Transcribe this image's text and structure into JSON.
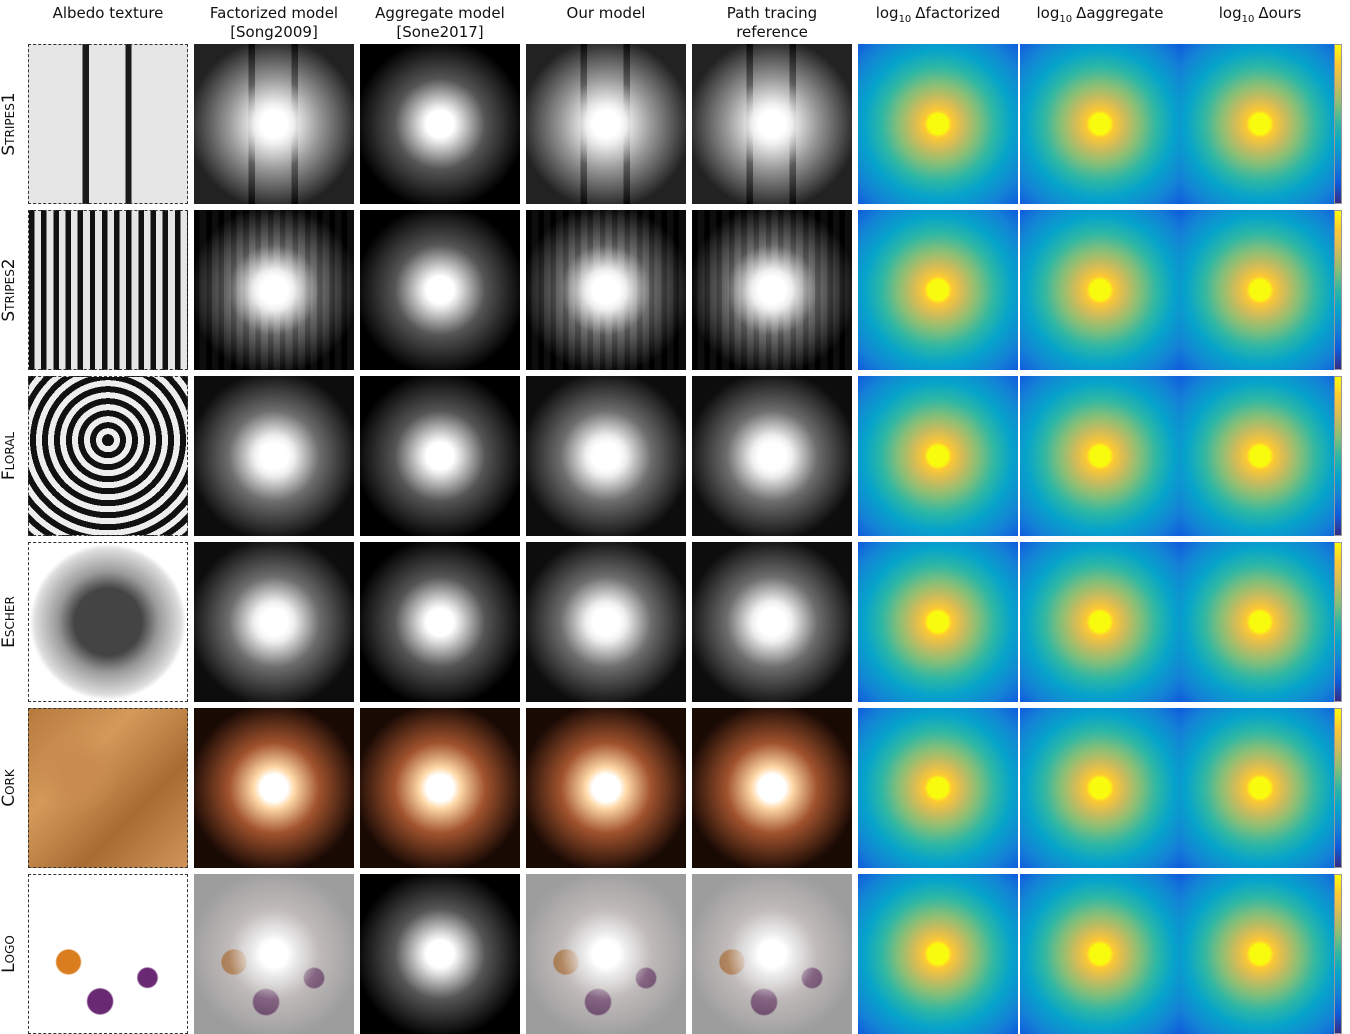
{
  "columns": [
    {
      "lines": [
        "Albedo texture"
      ]
    },
    {
      "lines": [
        "Factorized model",
        "[Song2009]"
      ]
    },
    {
      "lines": [
        "Aggregate model",
        "[Sone2017]"
      ]
    },
    {
      "lines": [
        "Our model"
      ]
    },
    {
      "lines": [
        "Path tracing",
        "reference"
      ]
    },
    {
      "base": "log",
      "sub": "10",
      "term": "Δfactorized"
    },
    {
      "base": "log",
      "sub": "10",
      "term": "Δaggregate"
    },
    {
      "base": "log",
      "sub": "10",
      "term": "Δours"
    }
  ],
  "rows": [
    "Stripes1",
    "Stripes2",
    "Floral",
    "Escher",
    "Cork",
    "Logo"
  ]
}
